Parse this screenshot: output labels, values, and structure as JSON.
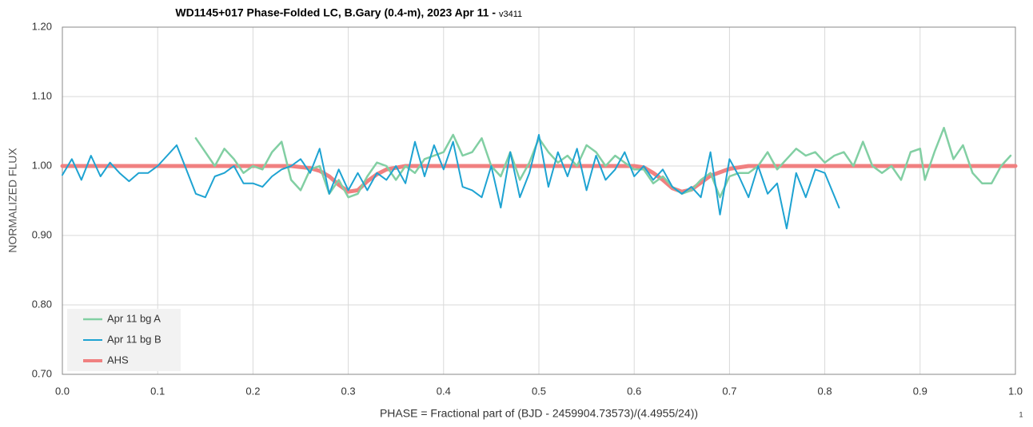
{
  "chart_data": {
    "type": "line",
    "title": "WD1145+017 Phase-Folded LC, B.Gary (0.4-m), 2023 Apr 11 -",
    "title_version": "v3411",
    "xlabel": "PHASE = Fractional part of (BJD - 2459904.73573)/(4.4955/24))",
    "ylabel": "NORMALIZED FLUX",
    "annotation": "1",
    "xlim": [
      0,
      1
    ],
    "ylim": [
      0.7,
      1.2
    ],
    "xticks": [
      {
        "value": 0,
        "label": "0.0"
      },
      0.1,
      0.2,
      0.3,
      0.4,
      0.5,
      0.6,
      0.7,
      0.8,
      0.9,
      {
        "value": 1,
        "label": "1.0"
      }
    ],
    "yticks": [
      {
        "value": 0.7,
        "label": "0.70"
      },
      {
        "value": 0.8,
        "label": "0.80"
      },
      {
        "value": 0.9,
        "label": "0.90"
      },
      {
        "value": 1.0,
        "label": "1.00"
      },
      {
        "value": 1.1,
        "label": "1.10"
      },
      {
        "value": 1.2,
        "label": "1.20"
      }
    ],
    "grid": true,
    "legend": "lower left",
    "series": [
      {
        "name": "Apr 11 bg A",
        "color": "#82cfa3",
        "width": 2.5,
        "x": [
          0.14,
          0.15,
          0.16,
          0.17,
          0.18,
          0.19,
          0.2,
          0.21,
          0.22,
          0.23,
          0.24,
          0.25,
          0.26,
          0.27,
          0.28,
          0.29,
          0.3,
          0.31,
          0.32,
          0.33,
          0.34,
          0.35,
          0.36,
          0.37,
          0.38,
          0.39,
          0.4,
          0.41,
          0.42,
          0.43,
          0.44,
          0.45,
          0.46,
          0.47,
          0.48,
          0.49,
          0.5,
          0.51,
          0.52,
          0.53,
          0.54,
          0.55,
          0.56,
          0.57,
          0.58,
          0.59,
          0.6,
          0.61,
          0.62,
          0.63,
          0.64,
          0.65,
          0.66,
          0.67,
          0.68,
          0.69,
          0.7,
          0.71,
          0.72,
          0.73,
          0.74,
          0.75,
          0.76,
          0.77,
          0.78,
          0.79,
          0.8,
          0.81,
          0.82,
          0.83,
          0.84,
          0.85,
          0.86,
          0.87,
          0.88,
          0.89,
          0.9,
          0.905,
          0.915,
          0.925,
          0.935,
          0.945,
          0.955,
          0.965,
          0.975,
          0.985,
          0.995
        ],
        "values": [
          1.04,
          1.02,
          1.0,
          1.025,
          1.01,
          0.99,
          1.0,
          0.995,
          1.02,
          1.035,
          0.98,
          0.965,
          0.995,
          1.0,
          0.96,
          0.98,
          0.955,
          0.96,
          0.985,
          1.005,
          1.0,
          0.98,
          1.0,
          0.99,
          1.01,
          1.015,
          1.02,
          1.045,
          1.015,
          1.02,
          1.04,
          1.0,
          0.985,
          1.02,
          0.98,
          1.005,
          1.04,
          1.02,
          1.005,
          1.015,
          1.0,
          1.03,
          1.02,
          1.0,
          1.015,
          1.005,
          0.995,
          0.995,
          0.975,
          0.985,
          0.97,
          0.96,
          0.965,
          0.98,
          0.99,
          0.955,
          0.985,
          0.99,
          0.99,
          1.0,
          1.02,
          0.995,
          1.01,
          1.025,
          1.015,
          1.02,
          1.005,
          1.015,
          1.02,
          1.0,
          1.035,
          1.0,
          0.99,
          1.0,
          0.98,
          1.02,
          1.025,
          0.98,
          1.02,
          1.055,
          1.01,
          1.03,
          0.99,
          0.975,
          0.975,
          1.0,
          1.015
        ]
      },
      {
        "name": "Apr 11 bg B",
        "color": "#1ea3d2",
        "width": 2,
        "x": [
          0,
          0.01,
          0.02,
          0.03,
          0.04,
          0.05,
          0.06,
          0.07,
          0.08,
          0.09,
          0.1,
          0.11,
          0.12,
          0.13,
          0.14,
          0.15,
          0.16,
          0.17,
          0.18,
          0.19,
          0.2,
          0.21,
          0.22,
          0.23,
          0.24,
          0.25,
          0.26,
          0.27,
          0.28,
          0.29,
          0.3,
          0.31,
          0.32,
          0.33,
          0.34,
          0.35,
          0.36,
          0.37,
          0.38,
          0.39,
          0.4,
          0.41,
          0.42,
          0.43,
          0.44,
          0.45,
          0.46,
          0.47,
          0.48,
          0.49,
          0.5,
          0.51,
          0.52,
          0.53,
          0.54,
          0.55,
          0.56,
          0.57,
          0.58,
          0.59,
          0.6,
          0.61,
          0.62,
          0.63,
          0.64,
          0.65,
          0.66,
          0.67,
          0.68,
          0.69,
          0.7,
          0.71,
          0.72,
          0.73,
          0.74,
          0.75,
          0.76,
          0.77,
          0.78,
          0.79,
          0.8,
          0.815
        ],
        "values": [
          0.987,
          1.01,
          0.98,
          1.015,
          0.985,
          1.005,
          0.99,
          0.978,
          0.99,
          0.99,
          1.0,
          1.015,
          1.03,
          0.995,
          0.96,
          0.955,
          0.985,
          0.99,
          1.0,
          0.975,
          0.975,
          0.97,
          0.985,
          0.995,
          1.0,
          1.01,
          0.99,
          1.025,
          0.96,
          0.995,
          0.965,
          0.99,
          0.965,
          0.99,
          0.98,
          1.0,
          0.975,
          1.035,
          0.985,
          1.03,
          0.995,
          1.035,
          0.97,
          0.965,
          0.955,
          1.0,
          0.94,
          1.02,
          0.955,
          0.99,
          1.045,
          0.97,
          1.02,
          0.985,
          1.025,
          0.965,
          1.015,
          0.98,
          0.995,
          1.02,
          0.985,
          1.0,
          0.98,
          0.995,
          0.97,
          0.96,
          0.97,
          0.955,
          1.02,
          0.93,
          1.01,
          0.985,
          0.955,
          1.0,
          0.96,
          0.975,
          0.91,
          0.99,
          0.955,
          0.995,
          0.99,
          0.94
        ]
      },
      {
        "name": "AHS",
        "color": "#f08080",
        "width": 5,
        "x": [
          0,
          0.24,
          0.26,
          0.27,
          0.28,
          0.29,
          0.3,
          0.31,
          0.32,
          0.33,
          0.34,
          0.36,
          0.6,
          0.61,
          0.62,
          0.63,
          0.64,
          0.65,
          0.66,
          0.67,
          0.68,
          0.7,
          0.72,
          1
        ],
        "values": [
          1.0,
          1.0,
          0.997,
          0.993,
          0.985,
          0.973,
          0.963,
          0.965,
          0.978,
          0.988,
          0.995,
          1.0,
          1.0,
          0.998,
          0.99,
          0.98,
          0.968,
          0.963,
          0.966,
          0.976,
          0.986,
          0.996,
          1.0,
          1.0
        ]
      }
    ]
  }
}
